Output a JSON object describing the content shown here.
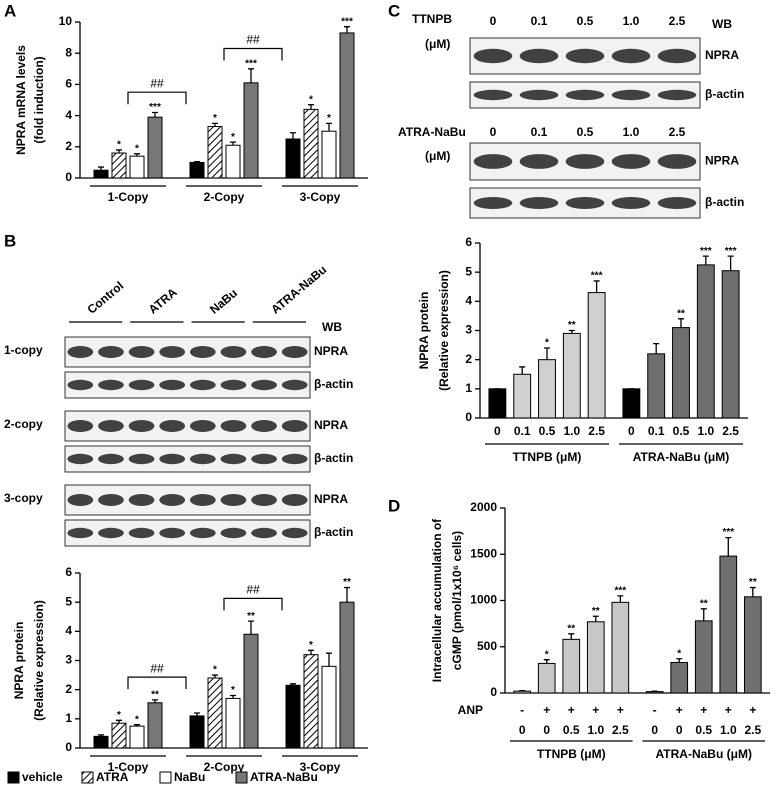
{
  "panel_labels": [
    "A",
    "B",
    "C",
    "D"
  ],
  "blot_b": {
    "lanes": [
      "Control",
      "ATRA",
      "NaBu",
      "ATRA-NaBu"
    ],
    "wb": "WB",
    "rows": [
      {
        "label": "1-copy",
        "proteins": [
          "NPRA",
          "β-actin"
        ]
      },
      {
        "label": "2-copy",
        "proteins": [
          "NPRA",
          "β-actin"
        ]
      },
      {
        "label": "3-copy",
        "proteins": [
          "NPRA",
          "β-actin"
        ]
      }
    ]
  },
  "blot_c": {
    "wb": "WB",
    "rows": [
      {
        "treatment": "TTNPB",
        "unit": "(μM)",
        "doses": [
          "0",
          "0.1",
          "0.5",
          "1.0",
          "2.5"
        ],
        "proteins": [
          "NPRA",
          "β-actin"
        ]
      },
      {
        "treatment": "ATRA-NaBu",
        "unit": "(μM)",
        "doses": [
          "0",
          "0.1",
          "0.5",
          "1.0",
          "2.5"
        ],
        "proteins": [
          "NPRA",
          "β-actin"
        ]
      }
    ]
  },
  "chart_data": [
    {
      "type": "bar",
      "ylabel": [
        "NPRA mRNA levels",
        "(fold induction)"
      ],
      "categories": [
        "1-Copy",
        "2-Copy",
        "3-Copy"
      ],
      "series": [
        {
          "name": "vehicle",
          "color": "#000000",
          "values": [
            0.5,
            1.0,
            2.5
          ],
          "errors": [
            0.2,
            0.05,
            0.4
          ],
          "sig": [
            null,
            null,
            null
          ]
        },
        {
          "name": "ATRA",
          "color": "#ffffff",
          "pattern": "hatch",
          "values": [
            1.6,
            3.3,
            4.4
          ],
          "errors": [
            0.2,
            0.2,
            0.3
          ],
          "sig": [
            "*",
            "*",
            "*"
          ]
        },
        {
          "name": "NaBu",
          "color": "#ffffff",
          "values": [
            1.4,
            2.1,
            3.0
          ],
          "errors": [
            0.15,
            0.2,
            0.5
          ],
          "sig": [
            "*",
            "*",
            "*"
          ]
        },
        {
          "name": "ATRA-NaBu",
          "color": "#777777",
          "values": [
            3.9,
            6.1,
            9.3
          ],
          "errors": [
            0.3,
            0.9,
            0.4
          ],
          "sig": [
            "***",
            "***",
            "***"
          ]
        }
      ],
      "brackets": [
        "##",
        "##"
      ],
      "ylim": [
        0,
        10
      ],
      "yticks": [
        0,
        2,
        4,
        6,
        8,
        10
      ]
    },
    {
      "type": "bar",
      "ylabel": [
        "NPRA protein",
        "(Relative expression)"
      ],
      "categories": [
        "1-Copy",
        "2-Copy",
        "3-Copy"
      ],
      "series": [
        {
          "name": "vehicle",
          "color": "#000000",
          "values": [
            0.4,
            1.1,
            2.15
          ],
          "errors": [
            0.05,
            0.1,
            0.05
          ],
          "sig": [
            null,
            null,
            null
          ]
        },
        {
          "name": "ATRA",
          "color": "#ffffff",
          "pattern": "hatch",
          "values": [
            0.85,
            2.4,
            3.2
          ],
          "errors": [
            0.1,
            0.1,
            0.15
          ],
          "sig": [
            "*",
            "*",
            "*"
          ]
        },
        {
          "name": "NaBu",
          "color": "#ffffff",
          "values": [
            0.75,
            1.7,
            2.8
          ],
          "errors": [
            0.05,
            0.1,
            0.45
          ],
          "sig": [
            "*",
            "*",
            null
          ]
        },
        {
          "name": "ATRA-NaBu",
          "color": "#777777",
          "values": [
            1.55,
            3.9,
            5.0
          ],
          "errors": [
            0.1,
            0.45,
            0.5
          ],
          "sig": [
            "**",
            "**",
            "**"
          ]
        }
      ],
      "brackets": [
        "##",
        "##"
      ],
      "legend": "bottom",
      "ylim": [
        0,
        6
      ],
      "yticks": [
        0,
        1,
        2,
        3,
        4,
        5,
        6
      ]
    },
    {
      "type": "bar",
      "ylabel": [
        "NPRA protein",
        "(Relative expression)"
      ],
      "categories": [
        "0",
        "0.1",
        "0.5",
        "1.0",
        "2.5"
      ],
      "series": [
        {
          "name": "TTNPB (μM)",
          "colors": [
            "#000000",
            "#d0d0d0",
            "#d0d0d0",
            "#d0d0d0",
            "#d0d0d0"
          ],
          "values": [
            1,
            1.5,
            2.0,
            2.9,
            4.3
          ],
          "errors": [
            0,
            0.25,
            0.4,
            0.1,
            0.4
          ],
          "sig": [
            null,
            null,
            "*",
            "**",
            "***"
          ]
        },
        {
          "name": "ATRA-NaBu (μM)",
          "colors": [
            "#000000",
            "#6e6e6e",
            "#6e6e6e",
            "#6e6e6e",
            "#6e6e6e"
          ],
          "values": [
            1,
            2.2,
            3.1,
            5.25,
            5.05
          ],
          "errors": [
            0,
            0.35,
            0.3,
            0.3,
            0.5
          ],
          "sig": [
            null,
            null,
            "**",
            "***",
            "***"
          ]
        }
      ],
      "ylim": [
        0,
        6
      ],
      "yticks": [
        0,
        1,
        2,
        3,
        4,
        5,
        6
      ]
    },
    {
      "type": "bar",
      "ylabel": [
        "Intracellular accumulation of",
        "cGMP  (pmol/1x10⁶ cells)"
      ],
      "anp_label": "ANP",
      "anp": [
        "-",
        "+",
        "+",
        "+",
        "+"
      ],
      "categories": [
        "0",
        "0",
        "0.5",
        "1.0",
        "2.5"
      ],
      "series": [
        {
          "name": "TTNPB (μM)",
          "colors": [
            "#c8c8c8",
            "#c8c8c8",
            "#c8c8c8",
            "#c8c8c8",
            "#c8c8c8"
          ],
          "values": [
            20,
            320,
            580,
            770,
            980
          ],
          "errors": [
            5,
            40,
            60,
            60,
            70
          ],
          "sig": [
            null,
            "*",
            "**",
            "**",
            "***"
          ]
        },
        {
          "name": "ATRA-NaBu (μM)",
          "colors": [
            "#707070",
            "#707070",
            "#707070",
            "#707070",
            "#707070"
          ],
          "values": [
            15,
            330,
            780,
            1480,
            1040
          ],
          "errors": [
            5,
            40,
            130,
            200,
            100
          ],
          "sig": [
            null,
            "*",
            "**",
            "***",
            "**"
          ]
        }
      ],
      "ylim": [
        0,
        2000
      ],
      "yticks": [
        0,
        500,
        1000,
        1500,
        2000
      ]
    }
  ]
}
